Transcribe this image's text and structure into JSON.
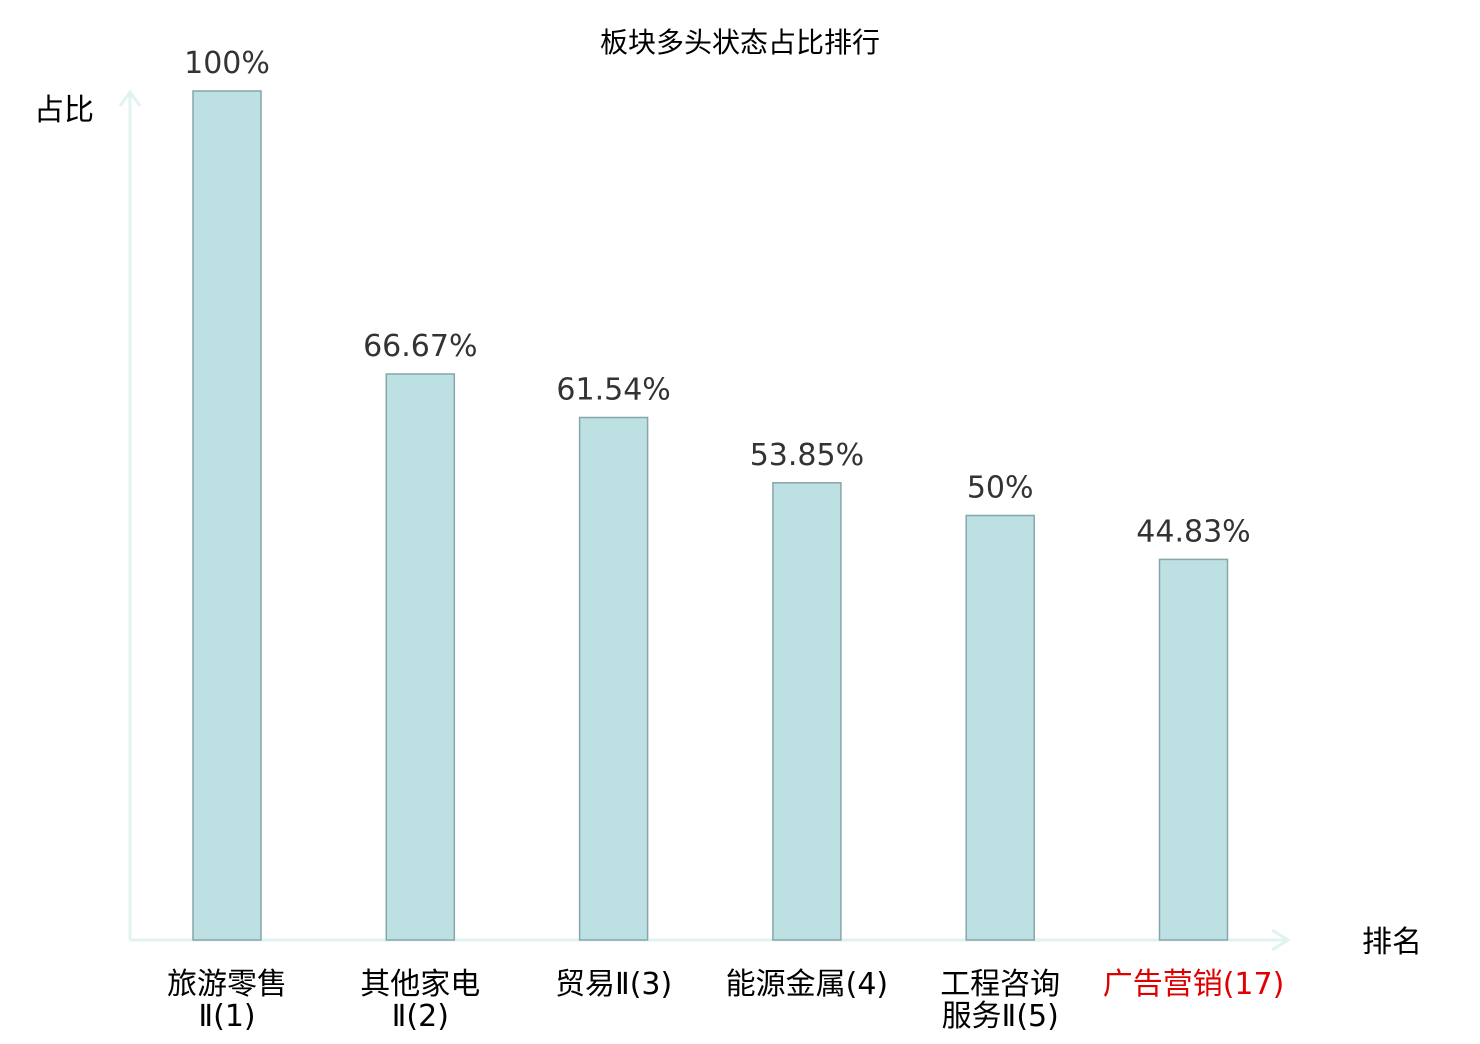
{
  "chart_data": {
    "type": "bar",
    "title": "板块多头状态占比排行",
    "ylabel": "占比",
    "xlabel": "排名",
    "ylim": [
      0,
      100
    ],
    "unit": "%",
    "grid": false,
    "legend": "none",
    "categories": [
      {
        "name": "旅游零售",
        "suffix": "Ⅱ(1)",
        "line1": "旅游零售",
        "line2": "Ⅱ(1)",
        "highlight": false
      },
      {
        "name": "其他家电",
        "suffix": "Ⅱ(2)",
        "line1": "其他家电",
        "line2": "Ⅱ(2)",
        "highlight": false
      },
      {
        "name": "贸易",
        "suffix": "Ⅱ(3)",
        "line1": "贸易Ⅱ(3)",
        "line2": "",
        "highlight": false
      },
      {
        "name": "能源金属",
        "suffix": "(4)",
        "line1": "能源金属(4)",
        "line2": "",
        "highlight": false
      },
      {
        "name": "工程咨询服务",
        "suffix": "Ⅱ(5)",
        "line1": "工程咨询",
        "line2": "服务Ⅱ(5)",
        "highlight": false
      },
      {
        "name": "广告营销",
        "suffix": "(17)",
        "line1": "广告营销(17)",
        "line2": "",
        "highlight": true
      }
    ],
    "values": [
      100,
      66.67,
      61.54,
      53.85,
      50,
      44.83
    ],
    "value_labels": [
      "100%",
      "66.67%",
      "61.54%",
      "53.85%",
      "50%",
      "44.83%"
    ],
    "colors": {
      "bar_fill": "#bde0e3",
      "bar_stroke": "#87a6a9",
      "axis": "#e1f3f1",
      "text": "#000000",
      "value_text": "#333333",
      "highlight_text": "#e00000"
    }
  }
}
